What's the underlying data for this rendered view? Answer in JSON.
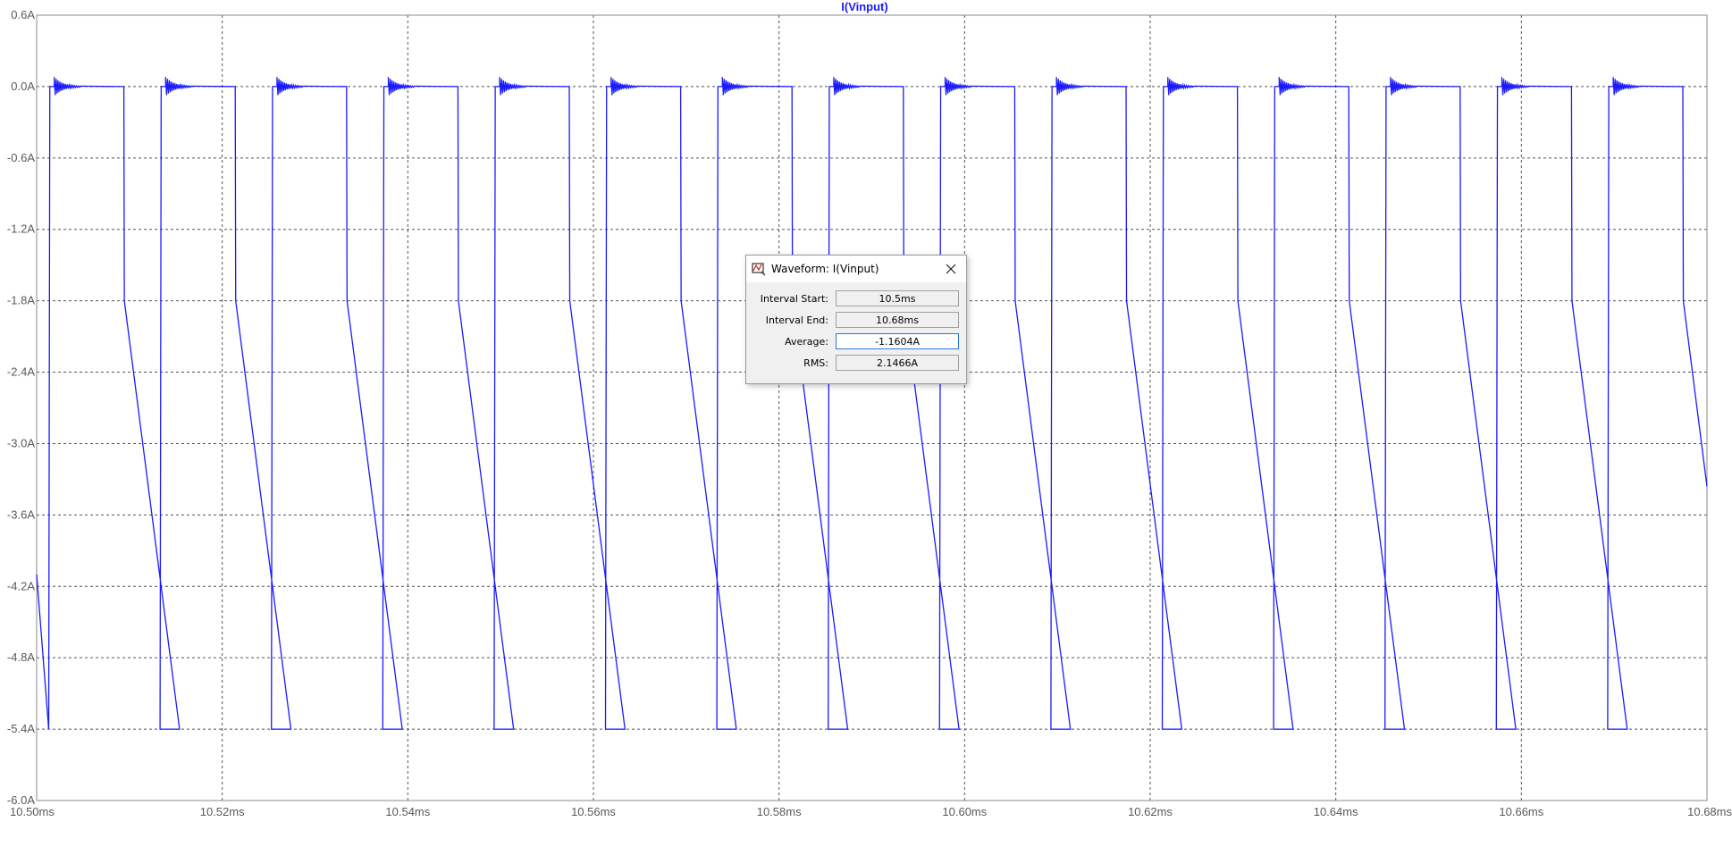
{
  "chart_data": {
    "type": "line",
    "title": "I(Vinput)",
    "series": [
      {
        "name": "I(Vinput)",
        "color": "#1a1aff",
        "period_ms": 0.012,
        "start_phase_ms": -0.0013,
        "low_value": -5.4,
        "high_value": 0.0,
        "fall_start_value": -1.8,
        "on_duration_ms": 0.0048,
        "fall_duration_ms": 0.006,
        "ringing_amplitude": 0.08
      }
    ],
    "xlabel": "",
    "ylabel": "",
    "xlim": [
      10.5,
      10.68
    ],
    "ylim": [
      -6.0,
      0.6
    ],
    "x_ticks": [
      "10.50ms",
      "10.52ms",
      "10.54ms",
      "10.56ms",
      "10.58ms",
      "10.60ms",
      "10.62ms",
      "10.64ms",
      "10.66ms",
      "10.68ms"
    ],
    "x_tick_values": [
      10.5,
      10.52,
      10.54,
      10.56,
      10.58,
      10.6,
      10.62,
      10.64,
      10.66,
      10.68
    ],
    "y_ticks": [
      "0.6A",
      "0.0A",
      "-0.6A",
      "-1.2A",
      "-1.8A",
      "-2.4A",
      "-3.0A",
      "-3.6A",
      "-4.2A",
      "-4.8A",
      "-5.4A",
      "-6.0A"
    ],
    "y_tick_values": [
      0.6,
      0.0,
      -0.6,
      -1.2,
      -1.8,
      -2.4,
      -3.0,
      -3.6,
      -4.2,
      -4.8,
      -5.4,
      -6.0
    ],
    "grid": true,
    "colors": {
      "trace": "#1a1aff",
      "title": "#1a1aff",
      "grid": "#555555",
      "axis": "#888888",
      "tick_text": "#5a5a5a"
    }
  },
  "dialog": {
    "title": "Waveform: I(Vinput)",
    "icon": "waveform-probe-icon",
    "close_icon": "close-icon",
    "fields": [
      {
        "label": "Interval Start:",
        "value": "10.5ms"
      },
      {
        "label": "Interval End:",
        "value": "10.68ms"
      },
      {
        "label": "Average:",
        "value": "-1.1604A"
      },
      {
        "label": "RMS:",
        "value": "2.1466A"
      }
    ]
  }
}
